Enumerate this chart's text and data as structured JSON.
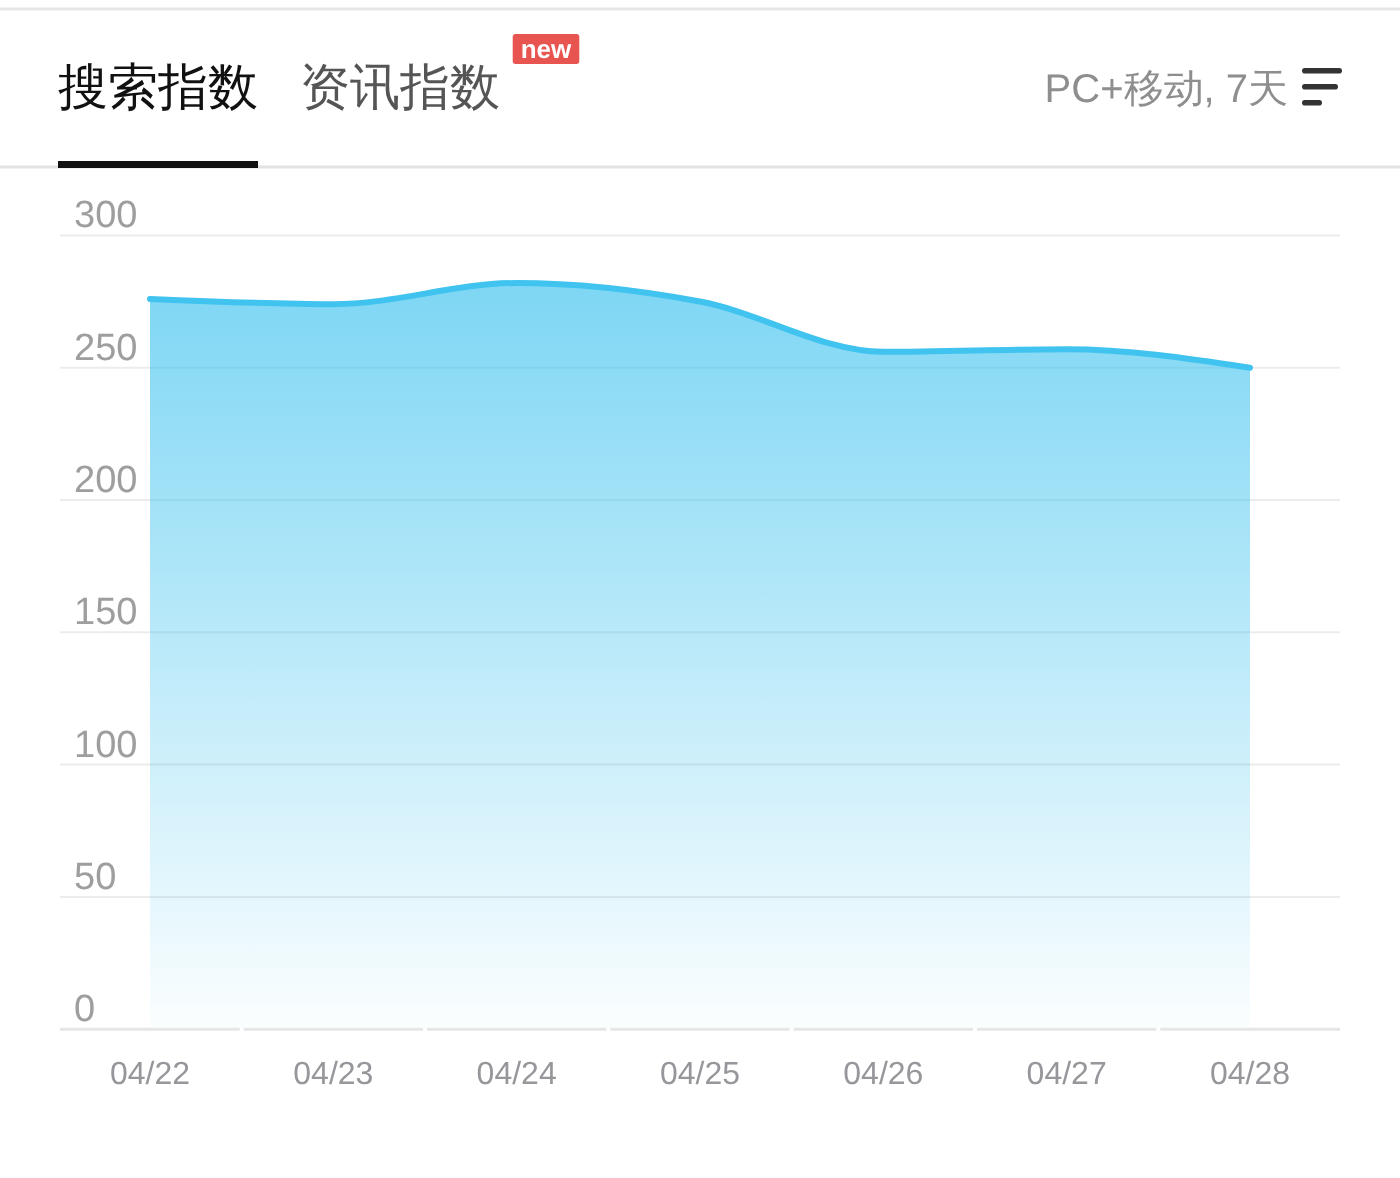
{
  "chart_data": {
    "type": "area",
    "title": "搜索指数",
    "subtitle": "PC+移动, 7天",
    "annotations": [
      "资讯指数",
      "new"
    ],
    "categories": [
      "04/22",
      "04/23",
      "04/24",
      "04/25",
      "04/26",
      "04/27",
      "04/28"
    ],
    "values": [
      276,
      274,
      282,
      275,
      256,
      257,
      250
    ],
    "color": "#40c3ef",
    "ylim": [
      0,
      300
    ],
    "yticks": [
      0,
      50,
      100,
      150,
      200,
      250,
      300
    ],
    "grid": "y"
  }
}
